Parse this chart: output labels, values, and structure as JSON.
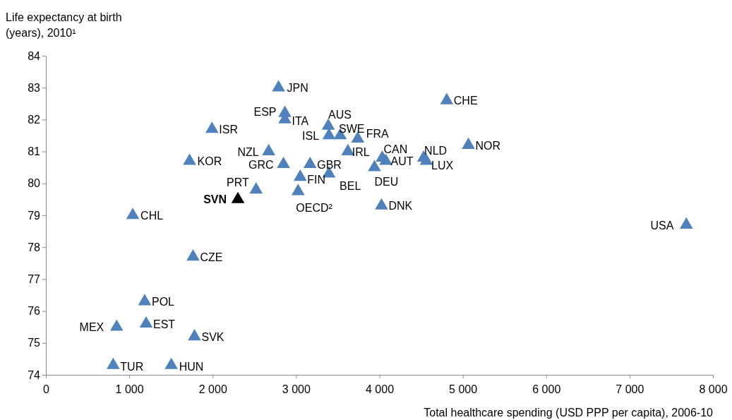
{
  "chart_data": {
    "type": "scatter",
    "ylabel": "Life expectancy at birth (years), 2010¹",
    "xlabel": "Total healthcare spending (USD PPP per capita), 2006-10",
    "marker": "triangle",
    "x": [
      2790,
      2866,
      2866,
      1992,
      3387,
      3530,
      3395,
      3740,
      4807,
      5067,
      4530,
      4563,
      4034,
      4076,
      3622,
      2672,
      1723,
      2849,
      3168,
      3050,
      3395,
      3941,
      2521,
      3025,
      2303,
      4025,
      1042,
      7681,
      1765,
      1185,
      1202,
      849,
      1782,
      807,
      1504
    ],
    "values": [
      83.0,
      82.2,
      82.0,
      81.7,
      81.8,
      81.5,
      81.5,
      81.4,
      82.6,
      81.2,
      80.8,
      80.7,
      80.8,
      80.7,
      81.0,
      81.0,
      80.7,
      80.6,
      80.6,
      80.2,
      80.3,
      80.5,
      79.8,
      79.75,
      79.5,
      79.3,
      79.0,
      78.7,
      77.7,
      76.3,
      75.6,
      75.5,
      75.2,
      74.3,
      74.3
    ],
    "colors": [
      "#4f81bd",
      "#4f81bd",
      "#4f81bd",
      "#4f81bd",
      "#4f81bd",
      "#4f81bd",
      "#4f81bd",
      "#4f81bd",
      "#4f81bd",
      "#4f81bd",
      "#4f81bd",
      "#4f81bd",
      "#4f81bd",
      "#4f81bd",
      "#4f81bd",
      "#4f81bd",
      "#4f81bd",
      "#4f81bd",
      "#4f81bd",
      "#4f81bd",
      "#4f81bd",
      "#4f81bd",
      "#4f81bd",
      "#4f81bd",
      "#000000",
      "#4f81bd",
      "#4f81bd",
      "#4f81bd",
      "#4f81bd",
      "#4f81bd",
      "#4f81bd",
      "#4f81bd",
      "#4f81bd",
      "#4f81bd",
      "#4f81bd"
    ],
    "annotations": [
      {
        "text": "JPN",
        "x": 2790,
        "y": 83.0
      },
      {
        "text": "ESP",
        "x": 2866,
        "y": 82.2
      },
      {
        "text": "ITA",
        "x": 2866,
        "y": 82.0
      },
      {
        "text": "ISR",
        "x": 1992,
        "y": 81.7
      },
      {
        "text": "AUS",
        "x": 3387,
        "y": 81.8
      },
      {
        "text": "SWE",
        "x": 3530,
        "y": 81.5
      },
      {
        "text": "ISL",
        "x": 3395,
        "y": 81.5
      },
      {
        "text": "FRA",
        "x": 3740,
        "y": 81.4
      },
      {
        "text": "CHE",
        "x": 4807,
        "y": 82.6
      },
      {
        "text": "NOR",
        "x": 5067,
        "y": 81.2
      },
      {
        "text": "NLD",
        "x": 4530,
        "y": 80.8
      },
      {
        "text": "LUX",
        "x": 4563,
        "y": 80.7
      },
      {
        "text": "CAN",
        "x": 4034,
        "y": 80.8
      },
      {
        "text": "AUT",
        "x": 4076,
        "y": 80.7
      },
      {
        "text": "IRL",
        "x": 3622,
        "y": 81.0
      },
      {
        "text": "NZL",
        "x": 2672,
        "y": 81.0
      },
      {
        "text": "KOR",
        "x": 1723,
        "y": 80.7
      },
      {
        "text": "GRC",
        "x": 2849,
        "y": 80.6
      },
      {
        "text": "GBR",
        "x": 3168,
        "y": 80.6
      },
      {
        "text": "FIN",
        "x": 3050,
        "y": 80.2
      },
      {
        "text": "BEL",
        "x": 3395,
        "y": 80.3
      },
      {
        "text": "DEU",
        "x": 3941,
        "y": 80.5
      },
      {
        "text": "PRT",
        "x": 2521,
        "y": 79.8
      },
      {
        "text": "OECD²",
        "x": 3025,
        "y": 79.75
      },
      {
        "text": "SVN",
        "x": 2303,
        "y": 79.5
      },
      {
        "text": "DNK",
        "x": 4025,
        "y": 79.3
      },
      {
        "text": "CHL",
        "x": 1042,
        "y": 79.0
      },
      {
        "text": "USA",
        "x": 7681,
        "y": 78.7
      },
      {
        "text": "CZE",
        "x": 1765,
        "y": 77.7
      },
      {
        "text": "POL",
        "x": 1185,
        "y": 76.3
      },
      {
        "text": "EST",
        "x": 1202,
        "y": 75.6
      },
      {
        "text": "MEX",
        "x": 849,
        "y": 75.5
      },
      {
        "text": "SVK",
        "x": 1782,
        "y": 75.2
      },
      {
        "text": "TUR",
        "x": 807,
        "y": 74.3
      },
      {
        "text": "HUN",
        "x": 1504,
        "y": 74.3
      }
    ],
    "xlim": [
      0,
      8000
    ],
    "xticks": [
      0,
      {
        "value": 1000,
        "label": "1 000"
      },
      {
        "value": 2000,
        "label": "2 000"
      },
      {
        "value": 3000,
        "label": "3 000"
      },
      {
        "value": 4000,
        "label": "4 000"
      },
      {
        "value": 5000,
        "label": "5 000"
      },
      {
        "value": 6000,
        "label": "6 000"
      },
      {
        "value": 7000,
        "label": "7 000"
      },
      {
        "value": 8000,
        "label": "8 000"
      }
    ],
    "ylim": [
      74,
      84
    ],
    "yticks": [
      74,
      75,
      76,
      77,
      78,
      79,
      80,
      81,
      82,
      83,
      84
    ],
    "grid": false
  }
}
